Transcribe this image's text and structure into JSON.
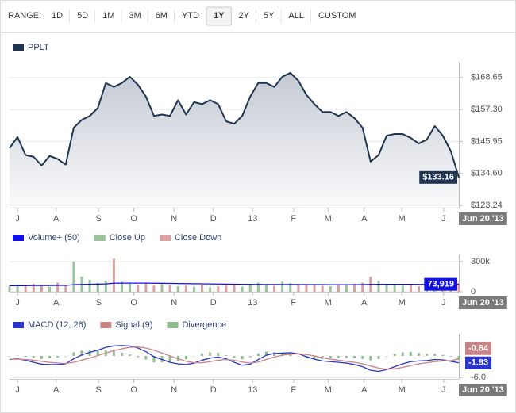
{
  "toolbar": {
    "label": "RANGE:",
    "buttons": [
      "1D",
      "5D",
      "1M",
      "3M",
      "6M",
      "YTD",
      "1Y",
      "2Y",
      "5Y",
      "ALL",
      "CUSTOM"
    ],
    "selected": 6
  },
  "chart_data": [
    {
      "type": "area",
      "series": [
        {
          "name": "PPLT",
          "color": "#1f3550",
          "values": [
            143.6,
            147.5,
            141.1,
            140.5,
            137.4,
            140.8,
            139.7,
            137.7,
            150.8,
            153.6,
            155.0,
            157.8,
            166.7,
            165.3,
            166.7,
            168.9,
            166.1,
            161.9,
            155.0,
            155.5,
            155.0,
            160.6,
            155.5,
            159.9,
            159.2,
            160.6,
            159.2,
            153.1,
            152.2,
            155.0,
            161.9,
            166.7,
            166.7,
            165.3,
            168.9,
            170.3,
            167.5,
            162.5,
            159.2,
            156.4,
            156.4,
            155.0,
            156.4,
            154.2,
            150.8,
            138.8,
            141.1,
            148.0,
            148.6,
            148.6,
            147.2,
            145.2,
            146.6,
            151.4,
            148.0,
            142.5,
            133.16
          ],
          "value_labels": [
            null,
            null,
            null,
            null,
            null,
            null,
            null,
            null,
            null,
            null,
            null,
            null,
            null,
            null,
            null,
            null,
            null,
            null,
            null,
            null,
            null,
            null,
            null,
            null,
            null,
            null,
            null,
            null,
            null,
            null,
            null,
            null,
            null,
            null,
            null,
            null,
            null,
            null,
            null,
            null,
            null,
            null,
            null,
            null,
            null,
            null,
            null,
            null,
            null,
            null,
            null,
            null,
            null,
            null,
            null,
            null,
            "$133.16"
          ]
        }
      ],
      "xlim": [
        0,
        56
      ],
      "xticks": [
        {
          "value": 1.0,
          "label": "J"
        },
        {
          "value": 5.8,
          "label": "A"
        },
        {
          "value": 11.1,
          "label": "S"
        },
        {
          "value": 15.5,
          "label": "O"
        },
        {
          "value": 20.5,
          "label": "N"
        },
        {
          "value": 25.4,
          "label": "D"
        },
        {
          "value": 30.3,
          "label": "13"
        },
        {
          "value": 35.4,
          "label": "F"
        },
        {
          "value": 39.7,
          "label": "M"
        },
        {
          "value": 44.2,
          "label": "A"
        },
        {
          "value": 48.9,
          "label": "M"
        },
        {
          "value": 54.1,
          "label": "J"
        }
      ],
      "ylim": [
        122.4,
        173.1
      ],
      "yticks": [
        {
          "value": 168.65,
          "label": "$168.65"
        },
        {
          "value": 157.3,
          "label": "$157.30"
        },
        {
          "value": 145.95,
          "label": "$145.95"
        },
        {
          "value": 134.6,
          "label": "$134.60"
        },
        {
          "value": 123.24,
          "label": "$123.24"
        }
      ],
      "grid": true,
      "x_end_label": "Jun 20 '13"
    },
    {
      "type": "bar",
      "series": [
        {
          "name": "Volume+ (50)",
          "color": "#1010e8",
          "style": "line",
          "values": [
            60000,
            61000,
            61000,
            62000,
            62000,
            62000,
            63000,
            63000,
            70000,
            73000,
            75000,
            76000,
            78000,
            85000,
            86000,
            86000,
            86000,
            86000,
            85000,
            84000,
            83000,
            82000,
            81000,
            80000,
            79000,
            78000,
            77000,
            76000,
            75000,
            74000,
            73000,
            73000,
            72000,
            72000,
            72000,
            72000,
            72000,
            71000,
            71000,
            71000,
            70000,
            70000,
            70000,
            70000,
            71000,
            73000,
            74000,
            74000,
            74000,
            74000,
            74000,
            73000,
            73000,
            73000,
            73000,
            74000,
            73919
          ],
          "value_labels": [
            null,
            null,
            null,
            null,
            null,
            null,
            null,
            null,
            null,
            null,
            null,
            null,
            null,
            null,
            null,
            null,
            null,
            null,
            null,
            null,
            null,
            null,
            null,
            null,
            null,
            null,
            null,
            null,
            null,
            null,
            null,
            null,
            null,
            null,
            null,
            null,
            null,
            null,
            null,
            null,
            null,
            null,
            null,
            null,
            null,
            null,
            null,
            null,
            null,
            null,
            null,
            null,
            null,
            null,
            null,
            null,
            "73,919"
          ]
        },
        {
          "name": "Close Up",
          "color": "#9cc49c",
          "style": "bar",
          "values": [
            60000,
            70000,
            null,
            null,
            null,
            50000,
            null,
            null,
            300000,
            150000,
            120000,
            90000,
            110000,
            null,
            100000,
            80000,
            null,
            null,
            null,
            75000,
            null,
            55000,
            null,
            50000,
            null,
            45000,
            null,
            null,
            null,
            50000,
            80000,
            90000,
            70000,
            null,
            100000,
            85000,
            null,
            null,
            null,
            null,
            55000,
            null,
            65000,
            null,
            null,
            null,
            110000,
            80000,
            70000,
            60000,
            null,
            null,
            60000,
            70000,
            null,
            null,
            null
          ]
        },
        {
          "name": "Close Down",
          "color": "#d9a0a0",
          "style": "bar",
          "values": [
            null,
            null,
            55000,
            80000,
            65000,
            null,
            90000,
            60000,
            null,
            null,
            null,
            null,
            null,
            330000,
            null,
            null,
            70000,
            90000,
            60000,
            null,
            65000,
            null,
            60000,
            null,
            70000,
            null,
            55000,
            60000,
            65000,
            null,
            null,
            null,
            null,
            60000,
            null,
            null,
            70000,
            65000,
            75000,
            60000,
            null,
            70000,
            null,
            80000,
            90000,
            150000,
            null,
            null,
            null,
            null,
            65000,
            55000,
            null,
            null,
            75000,
            80000,
            90000
          ]
        }
      ],
      "xlim": [
        0,
        56
      ],
      "xticks": [
        {
          "value": 1.0,
          "label": "J"
        },
        {
          "value": 5.8,
          "label": "A"
        },
        {
          "value": 11.1,
          "label": "S"
        },
        {
          "value": 15.5,
          "label": "O"
        },
        {
          "value": 20.5,
          "label": "N"
        },
        {
          "value": 25.4,
          "label": "D"
        },
        {
          "value": 30.3,
          "label": "13"
        },
        {
          "value": 35.4,
          "label": "F"
        },
        {
          "value": 39.7,
          "label": "M"
        },
        {
          "value": 44.2,
          "label": "A"
        },
        {
          "value": 48.9,
          "label": "M"
        },
        {
          "value": 54.1,
          "label": "J"
        }
      ],
      "ylim": [
        0,
        340000
      ],
      "yticks": [
        {
          "value": 300000,
          "label": "300k"
        },
        0
      ],
      "grid": true,
      "x_end_label": "Jun 20 '13"
    },
    {
      "type": "line",
      "series": [
        {
          "name": "MACD (12, 26)",
          "color": "#2a34c8",
          "style": "line",
          "values": [
            -1.0,
            -0.8,
            -1.2,
            -1.8,
            -2.3,
            -2.4,
            -2.4,
            -2.2,
            -0.8,
            0.3,
            1.0,
            1.6,
            2.4,
            2.8,
            2.9,
            2.8,
            2.2,
            1.2,
            -0.2,
            -1.0,
            -1.8,
            -2.2,
            -2.4,
            -2.0,
            -1.2,
            -0.6,
            -0.3,
            -0.8,
            -1.8,
            -2.6,
            -2.3,
            -1.0,
            0.2,
            0.7,
            0.8,
            0.9,
            0.6,
            -0.2,
            -0.9,
            -1.4,
            -1.6,
            -1.8,
            -2.0,
            -2.4,
            -3.0,
            -4.0,
            -4.3,
            -3.8,
            -3.0,
            -2.2,
            -1.6,
            -1.4,
            -1.3,
            -1.0,
            -1.1,
            -1.5,
            -1.93
          ]
        },
        {
          "name": "Signal (9)",
          "color": "#c98486",
          "style": "line",
          "values": [
            -0.9,
            -0.9,
            -1.0,
            -1.2,
            -1.5,
            -1.8,
            -2.0,
            -2.1,
            -1.8,
            -1.2,
            -0.6,
            0.1,
            0.8,
            1.5,
            2.0,
            2.4,
            2.5,
            2.2,
            1.6,
            0.8,
            0.0,
            -0.8,
            -1.5,
            -1.9,
            -1.9,
            -1.6,
            -1.2,
            -1.0,
            -1.2,
            -1.7,
            -2.0,
            -1.7,
            -1.0,
            -0.3,
            0.2,
            0.5,
            0.6,
            0.4,
            0.0,
            -0.5,
            -0.9,
            -1.2,
            -1.5,
            -1.8,
            -2.2,
            -2.8,
            -3.4,
            -3.7,
            -3.6,
            -3.2,
            -2.7,
            -2.2,
            -1.9,
            -1.6,
            -1.4,
            -1.3,
            -0.84
          ]
        },
        {
          "name": "Divergence",
          "color": "#90bd90",
          "style": "bar",
          "values": [
            -0.1,
            0.1,
            -0.2,
            -0.6,
            -0.8,
            -0.6,
            -0.4,
            -0.1,
            1.0,
            1.5,
            1.6,
            1.5,
            1.6,
            1.3,
            0.9,
            0.4,
            -0.3,
            -1.0,
            -1.8,
            -1.8,
            -1.8,
            -1.4,
            -0.9,
            -0.1,
            0.7,
            1.0,
            0.9,
            0.2,
            -0.6,
            -0.9,
            -0.3,
            0.7,
            1.2,
            1.0,
            0.6,
            0.4,
            0.0,
            -0.6,
            -0.9,
            -0.9,
            -0.7,
            -0.6,
            -0.5,
            -0.6,
            -0.8,
            -1.2,
            -0.9,
            -0.1,
            0.6,
            1.0,
            1.1,
            0.8,
            0.6,
            0.6,
            0.3,
            -0.2,
            -1.09
          ]
        }
      ],
      "xlim": [
        0,
        56
      ],
      "xticks": [
        {
          "value": 1.0,
          "label": "J"
        },
        {
          "value": 5.8,
          "label": "A"
        },
        {
          "value": 11.1,
          "label": "S"
        },
        {
          "value": 15.5,
          "label": "O"
        },
        {
          "value": 20.5,
          "label": "N"
        },
        {
          "value": 25.4,
          "label": "D"
        },
        {
          "value": 30.3,
          "label": "13"
        },
        {
          "value": 35.4,
          "label": "F"
        },
        {
          "value": 39.7,
          "label": "M"
        },
        {
          "value": 44.2,
          "label": "A"
        },
        {
          "value": 48.9,
          "label": "M"
        },
        {
          "value": 54.1,
          "label": "J"
        }
      ],
      "ylim": [
        -6.4,
        5.3
      ],
      "yticks": [
        {
          "value": -6,
          "label": "-6.0"
        }
      ],
      "grid": true,
      "x_end_label": "Jun 20 '13"
    }
  ]
}
